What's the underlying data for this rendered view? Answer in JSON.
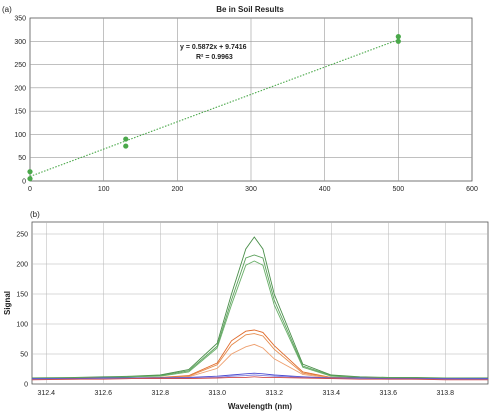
{
  "chart_data": [
    {
      "type": "scatter",
      "panel_label": "(a)",
      "title": "Be in Soil Results",
      "xlabel": "",
      "ylabel": "",
      "xlim": [
        0,
        600
      ],
      "ylim": [
        0,
        350
      ],
      "x_ticks": [
        0,
        100,
        200,
        300,
        400,
        500,
        600
      ],
      "y_ticks": [
        0,
        50,
        100,
        150,
        200,
        250,
        300,
        350
      ],
      "grid": true,
      "series": [
        {
          "points": [
            {
              "x": 0,
              "y": 20
            },
            {
              "x": 0,
              "y": 5
            },
            {
              "x": 130,
              "y": 90
            },
            {
              "x": 130,
              "y": 75
            },
            {
              "x": 500,
              "y": 310
            },
            {
              "x": 500,
              "y": 300
            }
          ],
          "color": "#4aa84a"
        }
      ],
      "trendline": {
        "slope": 0.5872,
        "intercept": 9.7416,
        "x_range": [
          0,
          500
        ],
        "color": "#4aa84a",
        "equation": "y = 0.5872x + 9.7416",
        "r_squared": "R² = 0.9963"
      }
    },
    {
      "type": "line",
      "panel_label": "(b)",
      "title": "",
      "xlabel": "Wavelength (nm)",
      "ylabel": "Signal",
      "xlim": [
        312.35,
        313.95
      ],
      "ylim": [
        0,
        270
      ],
      "x_ticks": [
        "312.4",
        "312.6",
        "312.8",
        "313.0",
        "313.2",
        "313.4",
        "313.6",
        "313.8"
      ],
      "y_ticks": [
        0,
        50,
        100,
        150,
        200,
        250
      ],
      "grid": true,
      "x": [
        312.35,
        312.5,
        312.6,
        312.7,
        312.8,
        312.9,
        313.0,
        313.05,
        313.1,
        313.13,
        313.16,
        313.2,
        313.3,
        313.4,
        313.5,
        313.6,
        313.7,
        313.8,
        313.95
      ],
      "series": [
        {
          "color": "#4a8f4a",
          "values": [
            10,
            11,
            12,
            13,
            15,
            24,
            68,
            150,
            225,
            245,
            225,
            150,
            33,
            15,
            12,
            11,
            11,
            10,
            10
          ]
        },
        {
          "color": "#5aa05a",
          "values": [
            9,
            10,
            11,
            12,
            14,
            22,
            63,
            140,
            210,
            215,
            210,
            140,
            30,
            14,
            11,
            10,
            10,
            10,
            9
          ]
        },
        {
          "color": "#6ab06a",
          "values": [
            9,
            10,
            11,
            12,
            13,
            20,
            60,
            132,
            198,
            205,
            198,
            132,
            28,
            13,
            11,
            10,
            10,
            9,
            9
          ]
        },
        {
          "color": "#e06a2a",
          "values": [
            8,
            9,
            10,
            10,
            11,
            14,
            35,
            72,
            88,
            90,
            86,
            64,
            20,
            11,
            10,
            9,
            9,
            9,
            8
          ]
        },
        {
          "color": "#e58a4a",
          "values": [
            8,
            9,
            9,
            10,
            10,
            13,
            32,
            65,
            82,
            84,
            80,
            58,
            18,
            11,
            9,
            9,
            9,
            8,
            8
          ]
        },
        {
          "color": "#eea070",
          "values": [
            8,
            8,
            9,
            9,
            10,
            12,
            26,
            50,
            62,
            66,
            60,
            42,
            16,
            10,
            9,
            9,
            8,
            8,
            8
          ]
        },
        {
          "color": "#4a4ad0",
          "values": [
            9,
            9,
            10,
            10,
            10,
            11,
            13,
            15,
            17,
            18,
            17,
            15,
            12,
            10,
            10,
            9,
            9,
            9,
            9
          ]
        },
        {
          "color": "#8080e0",
          "values": [
            8,
            8,
            9,
            9,
            9,
            10,
            11,
            13,
            14,
            15,
            14,
            13,
            11,
            9,
            9,
            8,
            8,
            8,
            8
          ]
        },
        {
          "color": "#d04a4a",
          "values": [
            7,
            8,
            8,
            9,
            9,
            9,
            10,
            11,
            11,
            12,
            11,
            11,
            10,
            9,
            8,
            8,
            8,
            7,
            7
          ]
        }
      ]
    }
  ]
}
